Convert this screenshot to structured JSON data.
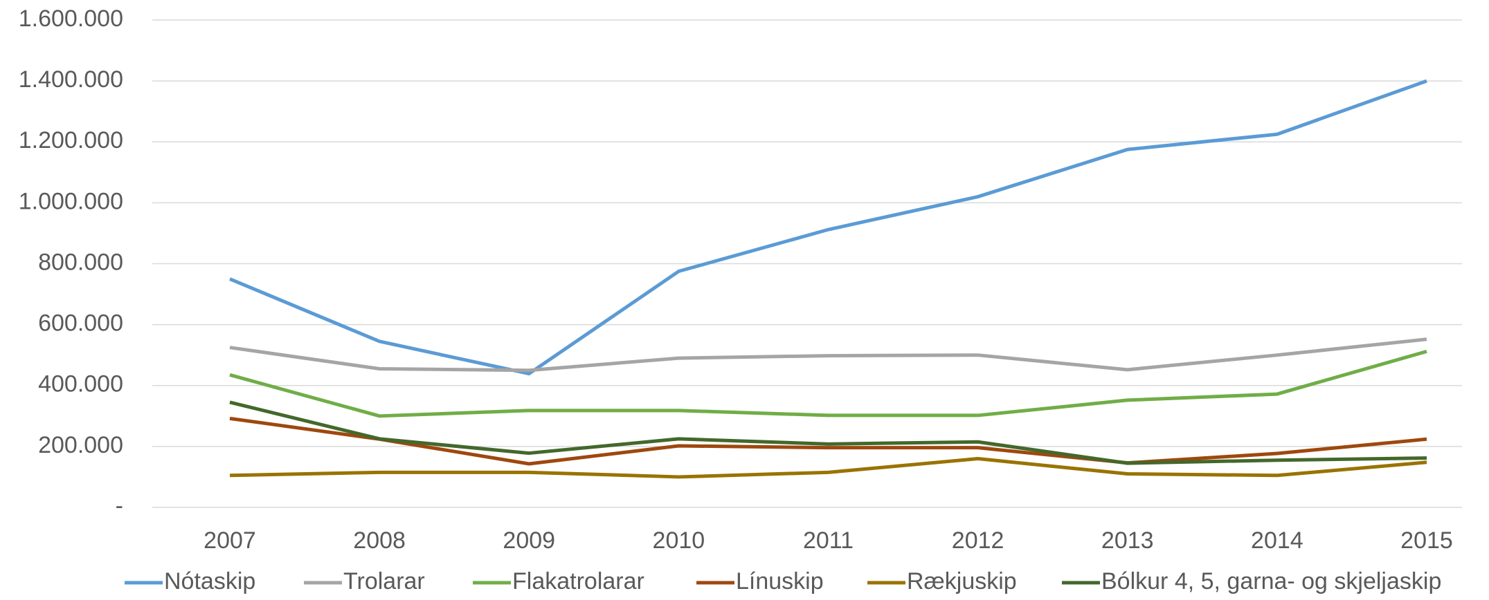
{
  "chart_data": {
    "type": "line",
    "categories": [
      "2007",
      "2008",
      "2009",
      "2010",
      "2011",
      "2012",
      "2013",
      "2014",
      "2015"
    ],
    "series": [
      {
        "name": "Nótaskip",
        "color": "#5b9bd5",
        "values": [
          750000,
          545000,
          439000,
          775000,
          912000,
          1020000,
          1175000,
          1225000,
          1400000
        ]
      },
      {
        "name": "Trolarar",
        "color": "#a5a5a5",
        "values": [
          525000,
          455000,
          450000,
          490000,
          498000,
          500000,
          452000,
          500000,
          552000
        ]
      },
      {
        "name": "Flakatrolarar",
        "color": "#70ad47",
        "values": [
          435000,
          300000,
          318000,
          318000,
          302000,
          302000,
          352000,
          372000,
          512000
        ]
      },
      {
        "name": "Línuskip",
        "color": "#9e480e",
        "values": [
          292000,
          224000,
          143000,
          202000,
          196000,
          196000,
          146000,
          177000,
          224000
        ]
      },
      {
        "name": "Rækjuskip",
        "color": "#997300",
        "values": [
          105000,
          115000,
          115000,
          100000,
          115000,
          160000,
          110000,
          105000,
          148000
        ]
      },
      {
        "name": "Bólkur 4, 5, garna- og skjeljaskip",
        "color": "#43682b",
        "values": [
          345000,
          225000,
          178000,
          225000,
          208000,
          215000,
          145000,
          155000,
          162000
        ]
      }
    ],
    "ylim": [
      0,
      1600000
    ],
    "yticks": [
      {
        "value": 0,
        "label": "-"
      },
      {
        "value": 200000,
        "label": "200.000"
      },
      {
        "value": 400000,
        "label": "400.000"
      },
      {
        "value": 600000,
        "label": "600.000"
      },
      {
        "value": 800000,
        "label": "800.000"
      },
      {
        "value": 1000000,
        "label": "1.000.000"
      },
      {
        "value": 1200000,
        "label": "1.200.000"
      },
      {
        "value": 1400000,
        "label": "1.400.000"
      },
      {
        "value": 1600000,
        "label": "1.600.000"
      }
    ],
    "grid": true,
    "legend": "bottom"
  }
}
